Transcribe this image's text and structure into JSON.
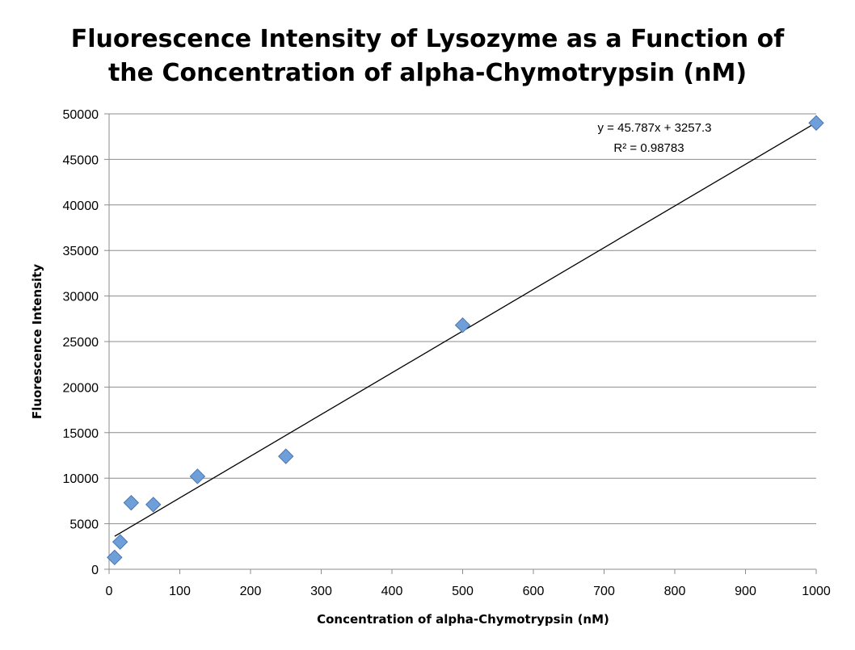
{
  "chart_data": {
    "type": "scatter",
    "title_line1": "Fluorescence Intensity of Lysozyme as a Function of",
    "title_line2": "the Concentration of alpha-Chymotrypsin (nM)",
    "xlabel": "Concentration of alpha-Chymotrypsin (nM)",
    "ylabel": "Fluorescence Intensity",
    "xlim": [
      0,
      1000
    ],
    "ylim": [
      0,
      50000
    ],
    "xticks": [
      0,
      100,
      200,
      300,
      400,
      500,
      600,
      700,
      800,
      900,
      1000
    ],
    "yticks": [
      0,
      5000,
      10000,
      15000,
      20000,
      25000,
      30000,
      35000,
      40000,
      45000,
      50000
    ],
    "grid": "horizontal",
    "legend": "none",
    "points": [
      {
        "x": 7.8,
        "y": 1300
      },
      {
        "x": 15.6,
        "y": 3000
      },
      {
        "x": 31.25,
        "y": 7300
      },
      {
        "x": 62.5,
        "y": 7100
      },
      {
        "x": 125,
        "y": 10200
      },
      {
        "x": 250,
        "y": 12400
      },
      {
        "x": 500,
        "y": 26800
      },
      {
        "x": 1000,
        "y": 49000
      }
    ],
    "trendline": {
      "slope": 45.787,
      "intercept": 3257.3,
      "x_range": [
        7.8,
        1000
      ],
      "equation_label": "y = 45.787x + 3257.3",
      "r2_label": "R² = 0.98783"
    },
    "marker_color": "#6f9fd8",
    "marker_edge_color": "#4a76b4"
  }
}
